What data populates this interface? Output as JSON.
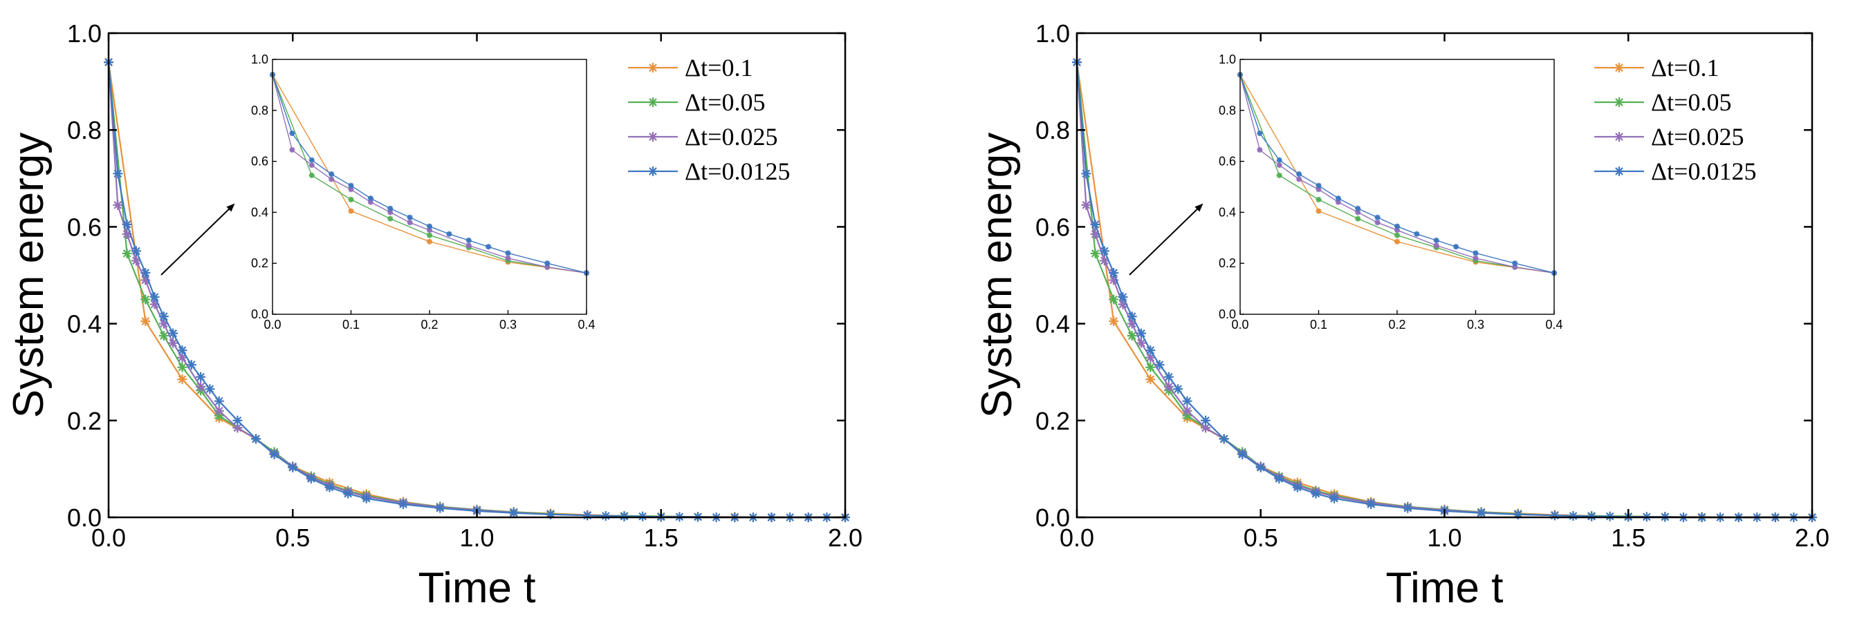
{
  "chart_data": [
    {
      "type": "line",
      "xlabel": "Time t",
      "ylabel": "System energy",
      "xlim": [
        0,
        2
      ],
      "ylim": [
        0,
        1
      ],
      "xticks": [
        "0.0",
        "0.5",
        "1.0",
        "1.5",
        "2.0"
      ],
      "yticks": [
        "0.0",
        "0.2",
        "0.4",
        "0.6",
        "0.8",
        "1.0"
      ],
      "legend_position": "top-right",
      "series": [
        {
          "name": "Δt=0.1",
          "color": "#E8913A",
          "x": [
            0,
            0.1,
            0.2,
            0.3,
            0.4,
            0.5,
            0.6,
            0.7,
            0.8,
            0.9,
            1.0,
            1.1,
            1.2,
            1.3,
            1.4,
            1.5,
            1.6,
            1.7,
            1.8,
            1.9,
            2.0
          ],
          "y": [
            0.94,
            0.405,
            0.285,
            0.205,
            0.162,
            0.105,
            0.072,
            0.048,
            0.032,
            0.022,
            0.016,
            0.011,
            0.008,
            0.005,
            0.003,
            0.002,
            0.001,
            0.001,
            0.0,
            0.0,
            0.0
          ]
        },
        {
          "name": "Δt=0.05",
          "color": "#55B055",
          "x": [
            0,
            0.05,
            0.1,
            0.15,
            0.2,
            0.25,
            0.3,
            0.35,
            0.4,
            0.45,
            0.5,
            0.55,
            0.6,
            0.65,
            0.7,
            0.8,
            0.9,
            1.0,
            1.1,
            1.2,
            1.3,
            1.4,
            1.5,
            1.6,
            1.7,
            1.8,
            1.9,
            2.0
          ],
          "y": [
            0.94,
            0.545,
            0.45,
            0.375,
            0.31,
            0.262,
            0.21,
            0.185,
            0.162,
            0.135,
            0.105,
            0.085,
            0.068,
            0.055,
            0.045,
            0.031,
            0.022,
            0.016,
            0.011,
            0.007,
            0.004,
            0.003,
            0.002,
            0.001,
            0.0,
            0.0,
            0.0,
            0.0
          ]
        },
        {
          "name": "Δt=0.025",
          "color": "#9370B8",
          "x": [
            0,
            0.025,
            0.05,
            0.075,
            0.1,
            0.125,
            0.15,
            0.175,
            0.2,
            0.25,
            0.3,
            0.35,
            0.4,
            0.45,
            0.5,
            0.55,
            0.6,
            0.65,
            0.7,
            0.8,
            0.9,
            1.0,
            1.1,
            1.2,
            1.3,
            1.4,
            1.5,
            1.6,
            1.7,
            1.8,
            1.9,
            2.0
          ],
          "y": [
            0.94,
            0.645,
            0.585,
            0.53,
            0.49,
            0.44,
            0.4,
            0.36,
            0.33,
            0.27,
            0.22,
            0.185,
            0.162,
            0.132,
            0.105,
            0.083,
            0.066,
            0.053,
            0.043,
            0.03,
            0.021,
            0.015,
            0.01,
            0.006,
            0.004,
            0.002,
            0.001,
            0.001,
            0.0,
            0.0,
            0.0,
            0.0
          ]
        },
        {
          "name": "Δt=0.0125",
          "color": "#3F78C0",
          "x": [
            0,
            0.025,
            0.05,
            0.075,
            0.1,
            0.125,
            0.15,
            0.175,
            0.2,
            0.225,
            0.25,
            0.275,
            0.3,
            0.35,
            0.4,
            0.45,
            0.5,
            0.55,
            0.6,
            0.65,
            0.7,
            0.8,
            0.9,
            1.0,
            1.1,
            1.2,
            1.3,
            1.35,
            1.4,
            1.45,
            1.5,
            1.55,
            1.6,
            1.65,
            1.7,
            1.75,
            1.8,
            1.85,
            1.9,
            1.95,
            2.0
          ],
          "y": [
            0.94,
            0.71,
            0.605,
            0.55,
            0.505,
            0.455,
            0.415,
            0.38,
            0.345,
            0.315,
            0.29,
            0.265,
            0.24,
            0.2,
            0.162,
            0.13,
            0.103,
            0.08,
            0.062,
            0.049,
            0.039,
            0.027,
            0.019,
            0.013,
            0.009,
            0.006,
            0.004,
            0.003,
            0.002,
            0.002,
            0.001,
            0.001,
            0.001,
            0.0,
            0.0,
            0.0,
            0.0,
            0.0,
            0.0,
            0.0,
            0.0
          ]
        }
      ],
      "inset": {
        "xlim": [
          0,
          0.4
        ],
        "ylim": [
          0,
          1
        ],
        "xticks": [
          "0.0",
          "0.1",
          "0.2",
          "0.3",
          "0.4"
        ],
        "yticks": [
          "0.0",
          "0.2",
          "0.4",
          "0.6",
          "0.8",
          "1.0"
        ]
      }
    },
    {
      "type": "line",
      "xlabel": "Time t",
      "ylabel": "System energy",
      "xlim": [
        0,
        2
      ],
      "ylim": [
        0,
        1
      ],
      "xticks": [
        "0.0",
        "0.5",
        "1.0",
        "1.5",
        "2.0"
      ],
      "yticks": [
        "0.0",
        "0.2",
        "0.4",
        "0.6",
        "0.8",
        "1.0"
      ],
      "legend_position": "top-right",
      "series": [
        {
          "name": "Δt=0.1",
          "color": "#E8913A",
          "x": [
            0,
            0.1,
            0.2,
            0.3,
            0.4,
            0.5,
            0.6,
            0.7,
            0.8,
            0.9,
            1.0,
            1.1,
            1.2,
            1.3,
            1.4,
            1.5,
            1.6,
            1.7,
            1.8,
            1.9,
            2.0
          ],
          "y": [
            0.94,
            0.405,
            0.285,
            0.205,
            0.162,
            0.105,
            0.072,
            0.048,
            0.032,
            0.022,
            0.016,
            0.011,
            0.008,
            0.005,
            0.003,
            0.002,
            0.001,
            0.001,
            0.0,
            0.0,
            0.0
          ]
        },
        {
          "name": "Δt=0.05",
          "color": "#55B055",
          "x": [
            0,
            0.05,
            0.1,
            0.15,
            0.2,
            0.25,
            0.3,
            0.35,
            0.4,
            0.45,
            0.5,
            0.55,
            0.6,
            0.65,
            0.7,
            0.8,
            0.9,
            1.0,
            1.1,
            1.2,
            1.3,
            1.4,
            1.5,
            1.6,
            1.7,
            1.8,
            1.9,
            2.0
          ],
          "y": [
            0.94,
            0.545,
            0.45,
            0.375,
            0.31,
            0.262,
            0.21,
            0.185,
            0.162,
            0.135,
            0.105,
            0.085,
            0.068,
            0.055,
            0.045,
            0.031,
            0.022,
            0.016,
            0.011,
            0.007,
            0.004,
            0.003,
            0.002,
            0.001,
            0.0,
            0.0,
            0.0,
            0.0
          ]
        },
        {
          "name": "Δt=0.025",
          "color": "#9370B8",
          "x": [
            0,
            0.025,
            0.05,
            0.075,
            0.1,
            0.125,
            0.15,
            0.175,
            0.2,
            0.25,
            0.3,
            0.35,
            0.4,
            0.45,
            0.5,
            0.55,
            0.6,
            0.65,
            0.7,
            0.8,
            0.9,
            1.0,
            1.1,
            1.2,
            1.3,
            1.4,
            1.5,
            1.6,
            1.7,
            1.8,
            1.9,
            2.0
          ],
          "y": [
            0.94,
            0.645,
            0.585,
            0.53,
            0.49,
            0.44,
            0.4,
            0.36,
            0.33,
            0.27,
            0.22,
            0.185,
            0.162,
            0.132,
            0.105,
            0.083,
            0.066,
            0.053,
            0.043,
            0.03,
            0.021,
            0.015,
            0.01,
            0.006,
            0.004,
            0.002,
            0.001,
            0.001,
            0.0,
            0.0,
            0.0,
            0.0
          ]
        },
        {
          "name": "Δt=0.0125",
          "color": "#3F78C0",
          "x": [
            0,
            0.025,
            0.05,
            0.075,
            0.1,
            0.125,
            0.15,
            0.175,
            0.2,
            0.225,
            0.25,
            0.275,
            0.3,
            0.35,
            0.4,
            0.45,
            0.5,
            0.55,
            0.6,
            0.65,
            0.7,
            0.8,
            0.9,
            1.0,
            1.1,
            1.2,
            1.3,
            1.35,
            1.4,
            1.45,
            1.5,
            1.55,
            1.6,
            1.65,
            1.7,
            1.75,
            1.8,
            1.85,
            1.9,
            1.95,
            2.0
          ],
          "y": [
            0.94,
            0.71,
            0.605,
            0.55,
            0.505,
            0.455,
            0.415,
            0.38,
            0.345,
            0.315,
            0.29,
            0.265,
            0.24,
            0.2,
            0.162,
            0.13,
            0.103,
            0.08,
            0.062,
            0.049,
            0.039,
            0.027,
            0.019,
            0.013,
            0.009,
            0.006,
            0.004,
            0.003,
            0.002,
            0.002,
            0.001,
            0.001,
            0.001,
            0.0,
            0.0,
            0.0,
            0.0,
            0.0,
            0.0,
            0.0,
            0.0
          ]
        }
      ],
      "inset": {
        "xlim": [
          0,
          0.4
        ],
        "ylim": [
          0,
          1
        ],
        "xticks": [
          "0.0",
          "0.1",
          "0.2",
          "0.3",
          "0.4"
        ],
        "yticks": [
          "0.0",
          "0.2",
          "0.4",
          "0.6",
          "0.8",
          "1.0"
        ]
      }
    }
  ]
}
